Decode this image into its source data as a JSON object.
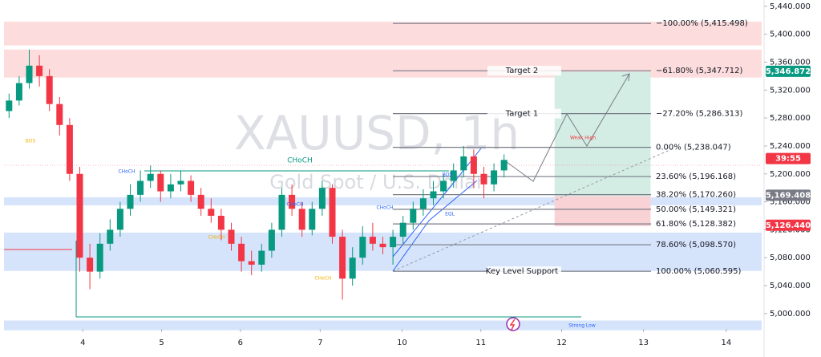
{
  "chart_data": {
    "type": "candlestick",
    "title": "XAUUSD, 1h",
    "subtitle": "Gold Spot / U.S. Dollar",
    "up_color": "#089981",
    "down_color": "#f23645",
    "open": [
      5290,
      5305,
      5330,
      5355,
      5340,
      5300,
      5270,
      5200,
      5080,
      5060,
      5100,
      5120,
      5150,
      5170,
      5190,
      5200,
      5175,
      5185,
      5190,
      5170,
      5150,
      5140,
      5120,
      5100,
      5075,
      5070,
      5090,
      5120,
      5170,
      5150,
      5120,
      5150,
      5180,
      5110,
      5050,
      5080,
      5110,
      5100,
      5095,
      5110,
      5130,
      5150,
      5165,
      5175,
      5190,
      5205,
      5225,
      5200,
      5185,
      5205
    ],
    "high": [
      5315,
      5340,
      5378,
      5370,
      5350,
      5310,
      5280,
      5210,
      5100,
      5115,
      5135,
      5160,
      5185,
      5205,
      5212,
      5205,
      5200,
      5205,
      5198,
      5180,
      5165,
      5150,
      5130,
      5110,
      5090,
      5100,
      5130,
      5180,
      5185,
      5160,
      5160,
      5190,
      5185,
      5120,
      5095,
      5125,
      5130,
      5110,
      5120,
      5140,
      5160,
      5178,
      5190,
      5200,
      5215,
      5240,
      5235,
      5210,
      5215,
      5228
    ],
    "low": [
      5280,
      5298,
      5322,
      5325,
      5290,
      5255,
      5190,
      5060,
      5035,
      5050,
      5090,
      5110,
      5140,
      5160,
      5180,
      5160,
      5165,
      5175,
      5160,
      5140,
      5130,
      5105,
      5090,
      5060,
      5055,
      5060,
      5080,
      5110,
      5140,
      5110,
      5112,
      5140,
      5100,
      5020,
      5040,
      5070,
      5090,
      5085,
      5070,
      5100,
      5120,
      5140,
      5155,
      5165,
      5180,
      5195,
      5180,
      5165,
      5175,
      5195
    ],
    "close": [
      5305,
      5330,
      5355,
      5340,
      5300,
      5270,
      5200,
      5080,
      5060,
      5100,
      5120,
      5150,
      5170,
      5190,
      5200,
      5175,
      5185,
      5190,
      5170,
      5150,
      5140,
      5120,
      5100,
      5075,
      5070,
      5090,
      5120,
      5170,
      5150,
      5120,
      5150,
      5180,
      5110,
      5050,
      5080,
      5110,
      5100,
      5095,
      5110,
      5130,
      5150,
      5165,
      5175,
      5190,
      5205,
      5225,
      5200,
      5185,
      5205,
      5220
    ],
    "xlim": [
      0,
      75
    ],
    "xticks": [
      {
        "value": 7.8,
        "label": "4"
      },
      {
        "value": 15.6,
        "label": "5"
      },
      {
        "value": 23.4,
        "label": "6"
      },
      {
        "value": 31.3,
        "label": "7"
      },
      {
        "value": 39.4,
        "label": "10"
      },
      {
        "value": 47.2,
        "label": "11"
      },
      {
        "value": 55.2,
        "label": "12"
      },
      {
        "value": 63.3,
        "label": "13"
      },
      {
        "value": 71.5,
        "label": "14"
      }
    ],
    "ylim": [
      4978,
      5449
    ],
    "yticks": [
      {
        "value": 5000,
        "label": "5,000.000"
      },
      {
        "value": 5040,
        "label": "5,040.000"
      },
      {
        "value": 5080,
        "label": "5,080.000"
      },
      {
        "value": 5120,
        "label": "5,120.000"
      },
      {
        "value": 5160,
        "label": "5,160.000"
      },
      {
        "value": 5200,
        "label": "5,200.000"
      },
      {
        "value": 5240,
        "label": "5,240.000"
      },
      {
        "value": 5280,
        "label": "5,280.000"
      },
      {
        "value": 5320,
        "label": "5,320.000"
      },
      {
        "value": 5360,
        "label": "5,360.000"
      },
      {
        "value": 5400,
        "label": "5,400.000"
      },
      {
        "value": 5440,
        "label": "5,440.000"
      }
    ],
    "price_tags": [
      {
        "value": 5346.872,
        "label": "5,346.872",
        "color": "#089981"
      },
      {
        "value": 5222,
        "label": "39:55",
        "color": "#f23645"
      },
      {
        "value": 5169.408,
        "label": "5,169.408",
        "color": "#787b86"
      },
      {
        "value": 5126.44,
        "label": "5,126.440",
        "color": "#f23645"
      }
    ],
    "zones": [
      {
        "from": 5384,
        "to": 5418,
        "color": "#fcdcdc"
      },
      {
        "from": 5338,
        "to": 5378,
        "color": "#fcdcdc"
      },
      {
        "from": 5155,
        "to": 5166.6,
        "color": "#d6e4fb"
      },
      {
        "from": 5061,
        "to": 5116,
        "color": "#d6e4fb"
      },
      {
        "from": 4976,
        "to": 4990,
        "color": "#d6e4fb"
      }
    ],
    "position": {
      "x": [
        54.5,
        64
      ],
      "entry": 5168,
      "target": 5346,
      "stop": 5125
    },
    "fib_levels": [
      {
        "value": 5415.498,
        "label": "−100.00% (5,415.498)"
      },
      {
        "value": 5347.712,
        "label": "−61.80% (5,347.712)",
        "name": "Target 2"
      },
      {
        "value": 5286.313,
        "label": "−27.20% (5,286.313)",
        "name": "Target 1"
      },
      {
        "value": 5238.047,
        "label": "0.00% (5,238.047)"
      },
      {
        "value": 5196.168,
        "label": "23.60% (5,196.168)"
      },
      {
        "value": 5170.26,
        "label": "38.20% (5,170.260)"
      },
      {
        "value": 5149.321,
        "label": "50.00% (5,149.321)"
      },
      {
        "value": 5128.382,
        "label": "61.80% (5,128.382)"
      },
      {
        "value": 5098.57,
        "label": "78.60% (5,098.570)"
      },
      {
        "value": 5060.595,
        "label": "100.00% (5,060.595)",
        "name": "Key Level Support"
      }
    ],
    "annotations": [
      {
        "text": "CHoCH",
        "color": "#2962ff"
      },
      {
        "text": "CHoCH",
        "color": "#089981"
      },
      {
        "text": "CHoCH",
        "color": "#2962ff"
      },
      {
        "text": "CHoCH",
        "color": "#2962ff"
      },
      {
        "text": "CHoCH",
        "color": "#f2b300"
      },
      {
        "text": "CHoCH",
        "color": "#f2b300"
      },
      {
        "text": "BOS",
        "color": "#f2b300"
      },
      {
        "text": "BOS",
        "color": "#2962ff"
      },
      {
        "text": "EQL",
        "color": "#2962ff"
      },
      {
        "text": "Weak High",
        "color": "#f23645"
      },
      {
        "text": "Strong Low",
        "color": "#2962ff"
      }
    ]
  }
}
